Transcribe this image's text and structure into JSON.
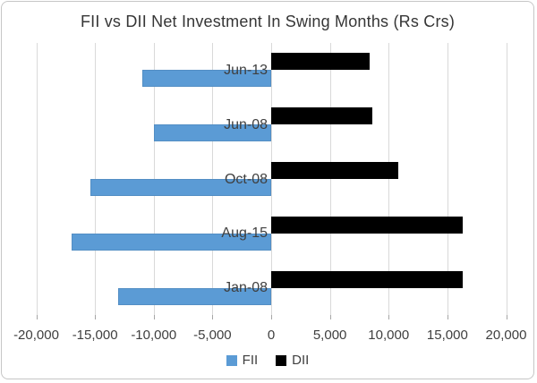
{
  "chart_data": {
    "type": "bar",
    "orientation": "horizontal",
    "title": "FII vs DII Net Investment In Swing Months (Rs Crs)",
    "categories": [
      "Jun-13",
      "Jun-08",
      "Oct-08",
      "Aug-15",
      "Jan-08"
    ],
    "series": [
      {
        "name": "FII",
        "color": "#5b9bd5",
        "values": [
          -11000,
          -10000,
          -15400,
          -17000,
          -13000
        ]
      },
      {
        "name": "DII",
        "color": "#000000",
        "values": [
          8400,
          8600,
          10800,
          16300,
          16300
        ]
      }
    ],
    "xlim": [
      -20000,
      20000
    ],
    "xticks": [
      -20000,
      -15000,
      -10000,
      -5000,
      0,
      5000,
      10000,
      15000,
      20000
    ],
    "xtick_labels": [
      "-20,000",
      "-15,000",
      "-10,000",
      "-5,000",
      "0",
      "5,000",
      "10,000",
      "15,000",
      "20,000"
    ],
    "grid": true,
    "legend_position": "bottom",
    "colors": {
      "text": "#3f3f3f",
      "gridline": "#d9d9d9"
    }
  }
}
